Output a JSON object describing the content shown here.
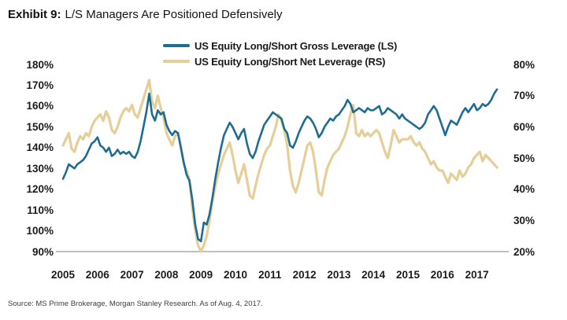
{
  "title": {
    "prefix": "Exhibit 9:",
    "text": "L/S Managers Are Positioned Defensively"
  },
  "source": "Source: MS Prime Brokerage, Morgan Stanley Research. As of Aug. 4, 2017.",
  "colors": {
    "gross_line": "#1F6C93",
    "net_line": "#E5CE97",
    "axis_line": "#9a9a9a"
  },
  "chart_data": {
    "type": "line",
    "title": "L/S Managers Are Positioned Defensively",
    "legend_position": "top-center",
    "grid": false,
    "x_axis": {
      "tick_labels": [
        "2005",
        "2006",
        "2007",
        "2008",
        "2009",
        "2010",
        "2011",
        "2012",
        "2013",
        "2014",
        "2015",
        "2016",
        "2017"
      ],
      "range_years": [
        2004.85,
        2017.85
      ]
    },
    "left_axis": {
      "tick_labels": [
        "180%",
        "170%",
        "160%",
        "150%",
        "140%",
        "130%",
        "120%",
        "110%",
        "100%",
        "90%"
      ],
      "range": [
        90,
        180
      ],
      "series": "US Equity Long/Short Gross Leverage (LS)"
    },
    "right_axis": {
      "tick_labels": [
        "80%",
        "70%",
        "60%",
        "50%",
        "40%",
        "30%",
        "20%"
      ],
      "range": [
        20,
        80
      ],
      "series": "US Equity Long/Short Net Leverage (RS)"
    },
    "legend": [
      {
        "label": "US Equity Long/Short Gross Leverage (LS)",
        "color": "#1F6C93"
      },
      {
        "label": "US Equity Long/Short Net Leverage (RS)",
        "color": "#E5CE97"
      }
    ],
    "sampling": "monthly estimates read from plot, Jan 2005 - Aug 2017, percent",
    "series": [
      {
        "name": "US Equity Long/Short Gross Leverage (LS)",
        "axis": "left",
        "color": "#1F6C93",
        "x_start": 2005.0,
        "x_step_years": 0.0833333,
        "values": [
          125,
          128,
          132,
          131,
          130,
          132,
          133,
          134,
          136,
          139,
          142,
          143,
          145,
          141,
          140,
          138,
          140,
          136,
          137,
          139,
          137,
          138,
          137,
          138,
          136,
          135,
          138,
          143,
          150,
          157,
          166,
          156,
          153,
          158,
          156,
          157,
          151,
          148,
          146,
          148,
          147,
          140,
          133,
          127,
          124,
          115,
          103,
          96,
          95,
          104,
          103,
          108,
          116,
          125,
          133,
          140,
          146,
          149,
          152,
          150,
          147,
          144,
          147,
          149,
          142,
          137,
          135,
          138,
          143,
          147,
          151,
          153,
          155,
          157,
          156,
          155,
          154,
          149,
          147,
          141,
          140,
          143,
          147,
          150,
          153,
          155,
          154,
          152,
          149,
          145,
          147,
          150,
          152,
          154,
          153,
          155,
          156,
          158,
          160,
          163,
          161,
          157,
          158,
          159,
          158,
          157,
          159,
          158,
          158,
          159,
          160,
          156,
          157,
          159,
          158,
          157,
          156,
          154,
          156,
          154,
          153,
          152,
          151,
          150,
          149,
          150,
          152,
          156,
          158,
          160,
          158,
          154,
          150,
          146,
          150,
          153,
          152,
          151,
          154,
          157,
          159,
          157,
          159,
          161,
          158,
          159,
          161,
          160,
          161,
          163,
          166,
          168
        ]
      },
      {
        "name": "US Equity Long/Short Net Leverage (RS)",
        "axis": "right",
        "color": "#E5CE97",
        "x_start": 2005.0,
        "x_step_years": 0.0833333,
        "values": [
          54,
          56,
          58,
          53,
          52,
          55,
          57,
          56,
          58,
          57,
          60,
          62,
          63,
          64,
          62,
          65,
          63,
          59,
          58,
          60,
          63,
          65,
          66,
          65,
          67,
          64,
          63,
          66,
          69,
          72,
          75,
          68,
          66,
          70,
          66,
          63,
          58,
          56,
          54,
          57,
          58,
          54,
          48,
          46,
          43,
          34,
          27,
          22,
          20,
          22,
          25,
          30,
          36,
          41,
          45,
          48,
          51,
          53,
          55,
          51,
          46,
          42,
          45,
          48,
          43,
          38,
          37,
          41,
          45,
          48,
          51,
          53,
          54,
          57,
          60,
          64,
          62,
          59,
          54,
          46,
          41,
          39,
          42,
          46,
          50,
          54,
          55,
          52,
          46,
          39,
          38,
          43,
          47,
          49,
          51,
          52,
          53,
          55,
          57,
          60,
          64,
          67,
          58,
          57,
          59,
          57,
          58,
          57,
          58,
          59,
          58,
          55,
          52,
          50,
          54,
          59,
          57,
          55,
          56,
          56,
          56,
          57,
          55,
          54,
          55,
          53,
          52,
          50,
          48,
          49,
          47,
          46,
          46,
          44,
          42,
          45,
          44,
          43,
          46,
          44,
          45,
          47,
          48,
          50,
          51,
          52,
          49,
          51,
          50,
          49,
          48,
          47
        ]
      }
    ]
  }
}
